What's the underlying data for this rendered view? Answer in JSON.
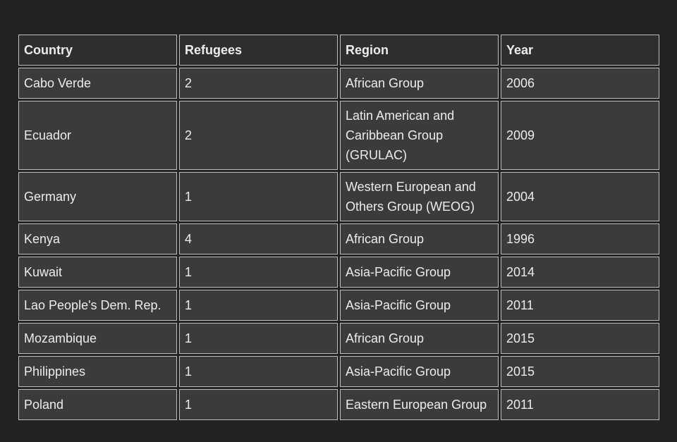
{
  "table": {
    "headers": [
      "Country",
      "Refugees",
      "Region",
      "Year"
    ],
    "rows": [
      [
        "Cabo Verde",
        "2",
        "African Group",
        "2006"
      ],
      [
        "Ecuador",
        "2",
        "Latin American and Caribbean Group (GRULAC)",
        "2009"
      ],
      [
        "Germany",
        "1",
        "Western European and Others Group (WEOG)",
        "2004"
      ],
      [
        "Kenya",
        "4",
        "African Group",
        "1996"
      ],
      [
        "Kuwait",
        "1",
        "Asia-Pacific Group",
        "2014"
      ],
      [
        "Lao People's Dem. Rep.",
        "1",
        "Asia-Pacific Group",
        "2011"
      ],
      [
        "Mozambique",
        "1",
        "African Group",
        "2015"
      ],
      [
        "Philippines",
        "1",
        "Asia-Pacific Group",
        "2015"
      ],
      [
        "Poland",
        "1",
        "Eastern European Group",
        "2011"
      ]
    ]
  }
}
